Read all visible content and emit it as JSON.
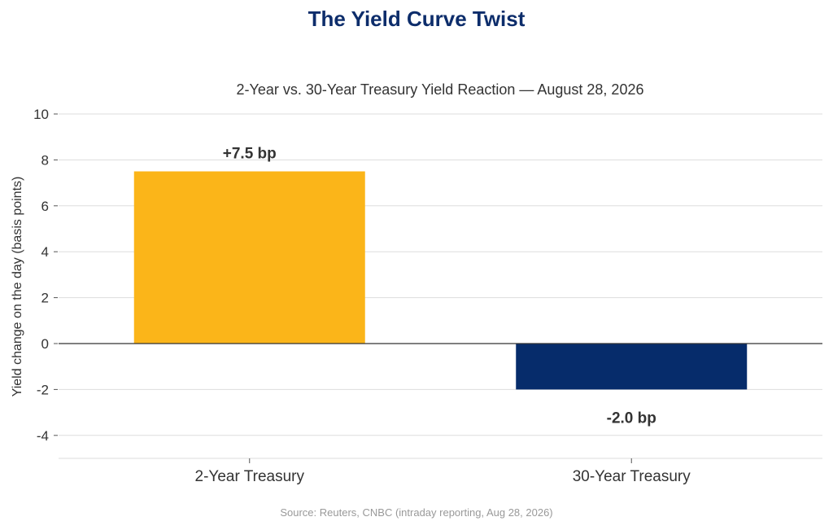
{
  "chart_data": {
    "type": "bar",
    "title": "The Yield Curve Twist",
    "subtitle": "2-Year vs. 30-Year Treasury Yield Reaction — August 28, 2026",
    "xlabel": "",
    "ylabel": "Yield change on the day (basis points)",
    "categories": [
      "2-Year Treasury",
      "30-Year Treasury"
    ],
    "values": [
      7.5,
      -2.0
    ],
    "data_labels": [
      "+7.5 bp",
      "-2.0 bp"
    ],
    "colors": [
      "#fbb519",
      "#062c6b"
    ],
    "ylim": [
      -5,
      10
    ],
    "yticks": [
      10,
      8,
      6,
      4,
      2,
      0,
      -2,
      -4
    ],
    "grid": true,
    "legend": "none"
  },
  "source": "Source: Reuters, CNBC (intraday reporting, Aug 28, 2026)"
}
